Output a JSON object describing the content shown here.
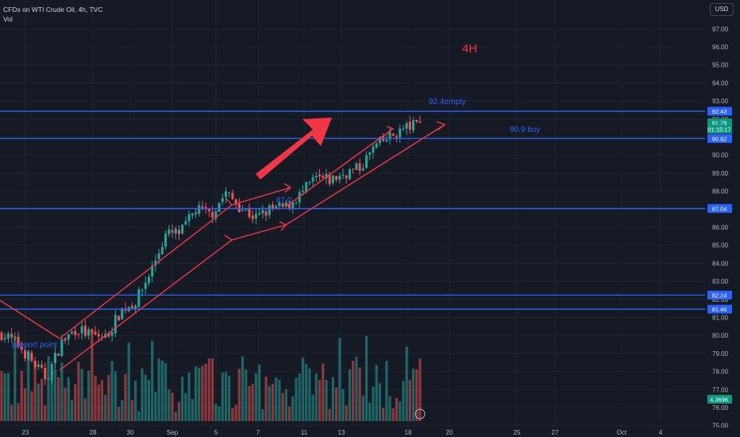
{
  "header": {
    "title": "CFDs on WTI Crude Oil, 4h, TVC",
    "volume_label": "Vol",
    "currency_button": "USD"
  },
  "colors": {
    "background": "#161a25",
    "grid": "#1f2430",
    "up": "#26a69a",
    "down": "#ef5350",
    "hline": "#2962ff",
    "annotation_red": "#f23645",
    "annotation_blue": "#2962ff",
    "axis_text": "#b2b5be",
    "current_price_bg": "#089981"
  },
  "chart_data": {
    "type": "candlestick",
    "ylim": [
      74.9,
      98.6
    ],
    "y_ticks": [
      "75.00",
      "76.00",
      "77.00",
      "78.00",
      "79.00",
      "80.00",
      "81.00",
      "82.00",
      "83.00",
      "84.00",
      "85.00",
      "86.00",
      "87.00",
      "88.00",
      "89.00",
      "90.00",
      "91.00",
      "92.00",
      "93.00",
      "94.00",
      "95.00",
      "96.00",
      "97.00"
    ],
    "x_ticks": [
      "23",
      "28",
      "30",
      "Sep",
      "5",
      "7",
      "11",
      "13",
      "18",
      "20",
      "25",
      "27",
      "Oct",
      "4"
    ],
    "grid": true,
    "price_labels": [
      {
        "text": "92.43",
        "value": 92.43,
        "type": "level"
      },
      {
        "text": "91.79",
        "value": 91.79,
        "type": "current"
      },
      {
        "text": "01:15:17",
        "value": 91.48,
        "type": "countdown"
      },
      {
        "text": "90.92",
        "value": 90.92,
        "type": "level"
      },
      {
        "text": "87.04",
        "value": 87.04,
        "type": "level"
      },
      {
        "text": "82.24",
        "value": 82.24,
        "type": "level"
      },
      {
        "text": "81.46",
        "value": 81.46,
        "type": "level"
      }
    ],
    "volume_label": "4.369K",
    "horizontal_levels": [
      92.43,
      90.92,
      87.04,
      82.24,
      81.46
    ],
    "annotations": [
      {
        "text": "4H",
        "color": "red"
      },
      {
        "text": "92.4empty",
        "color": "blue"
      },
      {
        "text": "90.9 buy",
        "color": "blue"
      },
      {
        "text": "87.0",
        "color": "blue"
      },
      {
        "text": "support point",
        "color": "blue"
      }
    ],
    "price_path": [
      80.1,
      79.6,
      78.6,
      77.6,
      79.6,
      80.4,
      80.0,
      79.9,
      81.4,
      81.9,
      83.6,
      85.6,
      85.7,
      87.0,
      86.7,
      87.9,
      87.1,
      86.5,
      87.0,
      87.1,
      87.8,
      88.7,
      88.6,
      89.0,
      89.3,
      90.5,
      91.0,
      91.5,
      91.79
    ]
  }
}
